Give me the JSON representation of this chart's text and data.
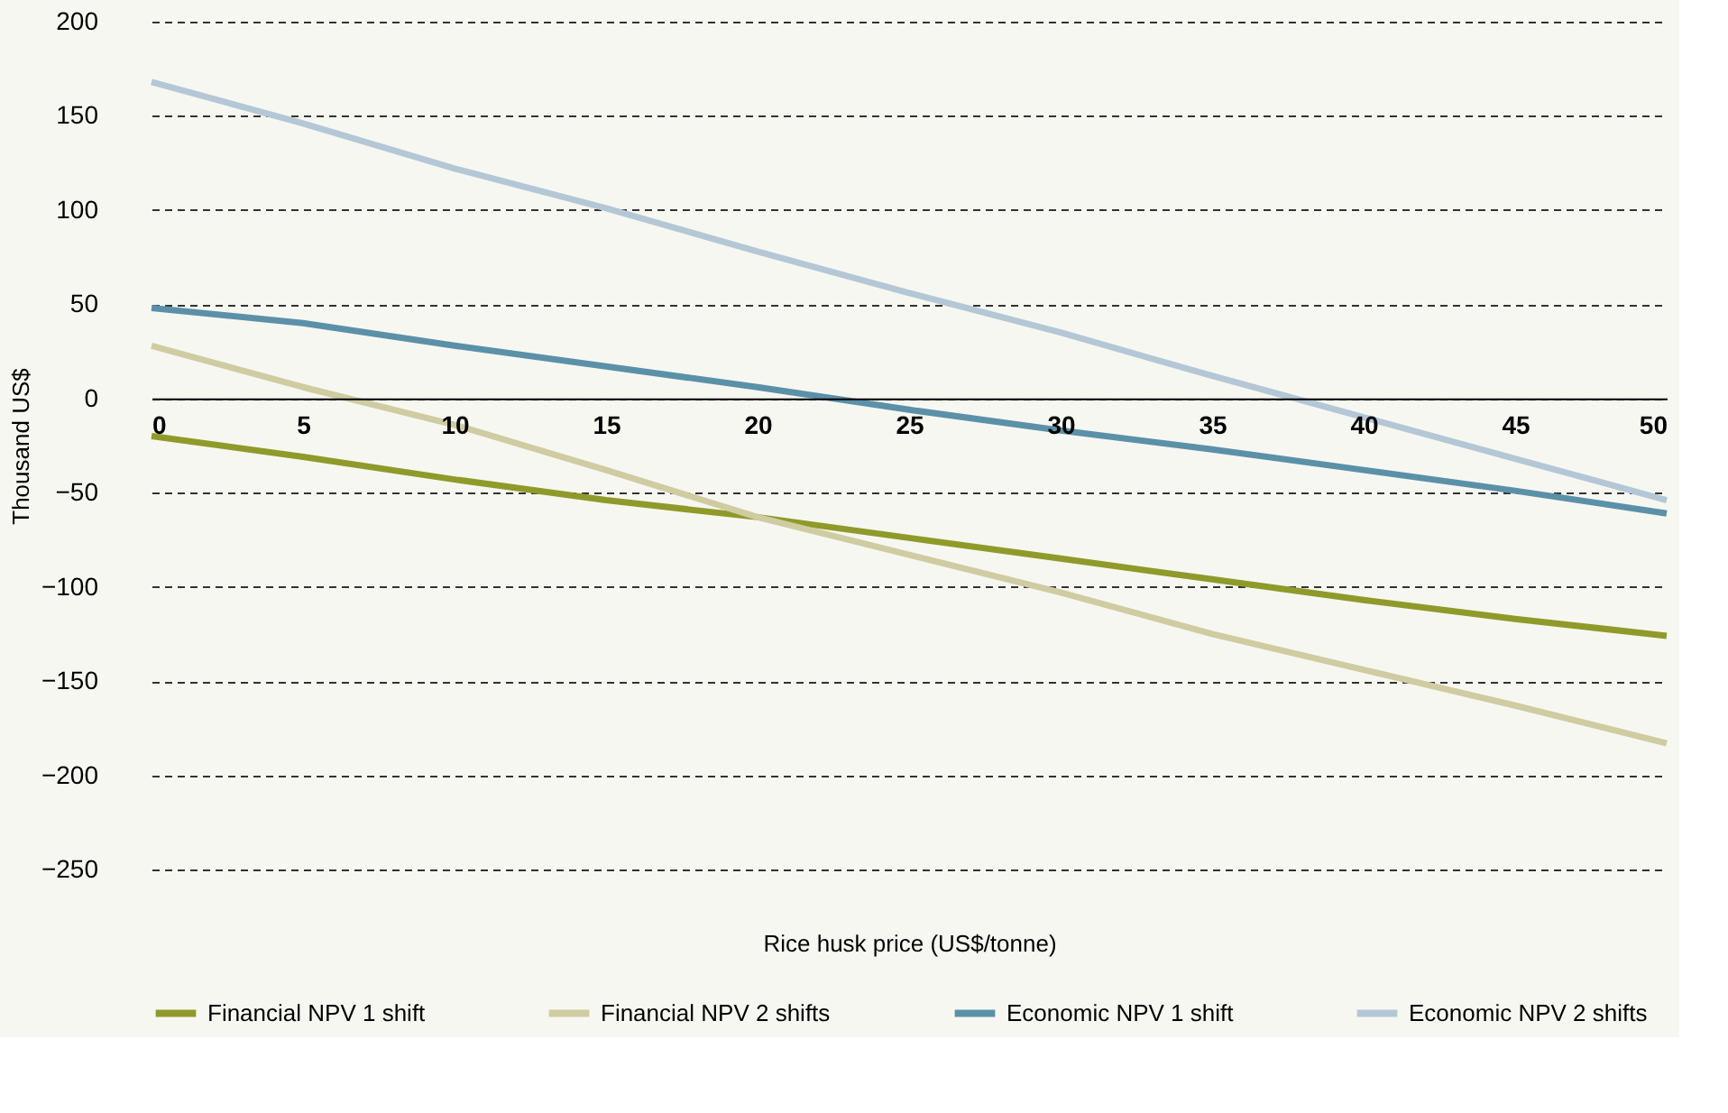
{
  "chart_data": {
    "type": "line",
    "xlabel": "Rice husk price (US$/tonne)",
    "ylabel": "Thousand US$",
    "x": [
      0,
      5,
      10,
      15,
      20,
      25,
      30,
      35,
      40,
      45,
      50
    ],
    "series": [
      {
        "name": "Financial NPV 1 shift",
        "color": "#8f9a2a",
        "values": [
          -20,
          -31,
          -43,
          -54,
          -63,
          -74,
          -85,
          -96,
          -107,
          -117,
          -126
        ]
      },
      {
        "name": "Financial NPV 2 shifts",
        "color": "#cfcca2",
        "values": [
          28,
          6,
          -14,
          -38,
          -63,
          -83,
          -103,
          -125,
          -144,
          -163,
          -183
        ]
      },
      {
        "name": "Economic NPV 1 shift",
        "color": "#5b91a8",
        "values": [
          48,
          40,
          28,
          17,
          6,
          -6,
          -17,
          -27,
          -38,
          -49,
          -61
        ]
      },
      {
        "name": "Economic NPV 2 shifts",
        "color": "#b4c7d6",
        "values": [
          168,
          146,
          122,
          101,
          78,
          56,
          35,
          12,
          -10,
          -32,
          -54
        ]
      }
    ],
    "xlim": [
      0,
      50
    ],
    "xticks": [
      0,
      5,
      10,
      15,
      20,
      25,
      30,
      35,
      40,
      45,
      50
    ],
    "ylim": [
      -250,
      200
    ],
    "yticks": [
      -250,
      -200,
      -150,
      -100,
      -50,
      0,
      50,
      100,
      150,
      200
    ],
    "grid": "y",
    "legend": "bottom",
    "marker": "none",
    "line_style": "solid"
  }
}
